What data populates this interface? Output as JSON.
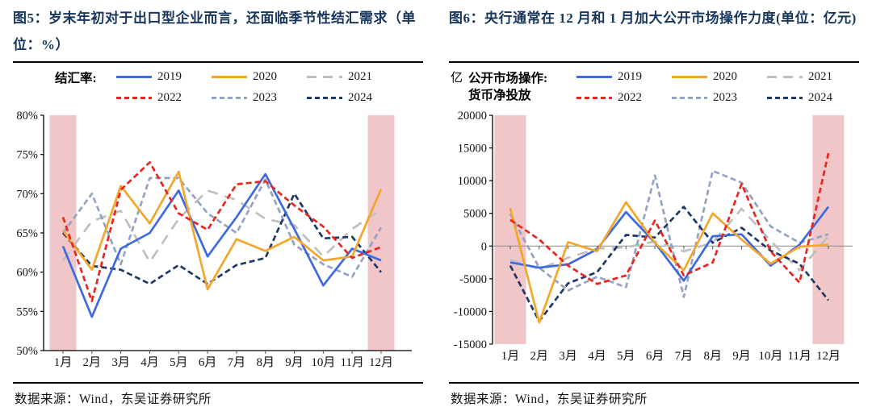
{
  "colors": {
    "title": "#17365D",
    "highlight_band": "#F1C6C8",
    "axis": "#000000",
    "zero_line": "#8A8A8A",
    "tick_text": "#111111"
  },
  "panels": [
    {
      "title": "图5：岁末年初对于出口型企业而言，还面临季节性结汇需求（单位：%）",
      "unit": "",
      "legend_label_lines": [
        "结汇率:"
      ],
      "source": "数据来源：Wind，东吴证券研究所"
    },
    {
      "title": "图6：央行通常在 12 月和 1 月加大公开市场操作力度(单位：亿元)",
      "unit": "亿",
      "legend_label_lines": [
        "公开市场操作:",
        "货币净投放"
      ],
      "source": "数据来源：Wind，东吴证券研究所"
    }
  ],
  "chart_data": [
    {
      "type": "line",
      "title": "结汇率（%）",
      "categories": [
        "1月",
        "2月",
        "3月",
        "4月",
        "5月",
        "6月",
        "7月",
        "8月",
        "9月",
        "10月",
        "11月",
        "12月"
      ],
      "ylim": [
        50,
        80
      ],
      "yticks": [
        80,
        75,
        70,
        65,
        60,
        55,
        50
      ],
      "ytick_suffix": "%",
      "grid": false,
      "legend_position": "top",
      "highlight_categories": [
        "1月",
        "12月"
      ],
      "series": [
        {
          "name": "2019",
          "color": "#3E6AE1",
          "line_style": "solid",
          "values": [
            63.3,
            54.3,
            63.0,
            65.0,
            70.4,
            62.0,
            67.0,
            72.5,
            65.5,
            58.3,
            63.0,
            61.5
          ]
        },
        {
          "name": "2020",
          "color": "#F4A62A",
          "line_style": "solid",
          "values": [
            65.3,
            60.3,
            71.0,
            66.2,
            72.8,
            57.8,
            64.2,
            62.7,
            64.5,
            61.5,
            62.0,
            70.6
          ]
        },
        {
          "name": "2021",
          "color": "#BFBFBF",
          "line_style": "long-dash",
          "values": [
            61.5,
            66.5,
            67.8,
            61.3,
            66.8,
            70.4,
            69.2,
            66.8,
            66.0,
            62.0,
            65.5,
            68.0
          ]
        },
        {
          "name": "2022",
          "color": "#E8261F",
          "line_style": "dashed",
          "values": [
            67.0,
            56.3,
            70.5,
            74.0,
            67.5,
            65.4,
            71.2,
            71.6,
            68.5,
            65.8,
            61.8,
            63.2
          ]
        },
        {
          "name": "2023",
          "color": "#94A3C4",
          "line_style": "dashed",
          "values": [
            65.0,
            70.0,
            61.0,
            72.0,
            72.0,
            67.5,
            65.0,
            71.8,
            63.5,
            61.0,
            59.4,
            65.7
          ]
        },
        {
          "name": "2024",
          "color": "#1F3864",
          "line_style": "dashed",
          "values": [
            65.0,
            60.8,
            60.3,
            58.5,
            60.9,
            58.5,
            60.9,
            61.8,
            70.0,
            64.3,
            64.5,
            60.0
          ]
        }
      ]
    },
    {
      "type": "line",
      "title": "公开市场操作：货币净投放（亿元）",
      "categories": [
        "1月",
        "2月",
        "3月",
        "4月",
        "5月",
        "6月",
        "7月",
        "8月",
        "9月",
        "10月",
        "11月",
        "12月"
      ],
      "ylim": [
        -15000,
        20000
      ],
      "yticks": [
        20000,
        15000,
        10000,
        5000,
        0,
        -5000,
        -10000,
        -15000
      ],
      "ytick_suffix": "",
      "grid": false,
      "legend_position": "top",
      "zero_axis": true,
      "highlight_categories": [
        "1月",
        "12月"
      ],
      "series": [
        {
          "name": "2019",
          "color": "#3E6AE1",
          "line_style": "solid",
          "values": [
            -2500,
            -3300,
            -2800,
            -500,
            5200,
            500,
            -5300,
            1500,
            1800,
            -3000,
            200,
            6000
          ]
        },
        {
          "name": "2020",
          "color": "#F4A62A",
          "line_style": "solid",
          "values": [
            5800,
            -11700,
            600,
            -800,
            6700,
            500,
            -3700,
            5000,
            1000,
            -2700,
            -100,
            200
          ]
        },
        {
          "name": "2021",
          "color": "#BFBFBF",
          "line_style": "long-dash",
          "values": [
            -2100,
            -3500,
            -1800,
            -400,
            -200,
            700,
            -800,
            500,
            5700,
            800,
            -3700,
            1500
          ]
        },
        {
          "name": "2022",
          "color": "#E8261F",
          "line_style": "dashed",
          "values": [
            4000,
            1000,
            -3000,
            -5800,
            -4500,
            3900,
            -4500,
            -2500,
            9500,
            -800,
            -5600,
            14200
          ]
        },
        {
          "name": "2023",
          "color": "#94A3C4",
          "line_style": "dashed",
          "values": [
            4900,
            -3300,
            -6800,
            -4700,
            -6300,
            10800,
            -7800,
            11500,
            9700,
            3000,
            500,
            1800
          ]
        },
        {
          "name": "2024",
          "color": "#1F3864",
          "line_style": "dashed",
          "values": [
            -3000,
            -11500,
            -5700,
            -4000,
            1700,
            1300,
            6000,
            500,
            2800,
            -700,
            -2700,
            -8300
          ]
        }
      ]
    }
  ]
}
